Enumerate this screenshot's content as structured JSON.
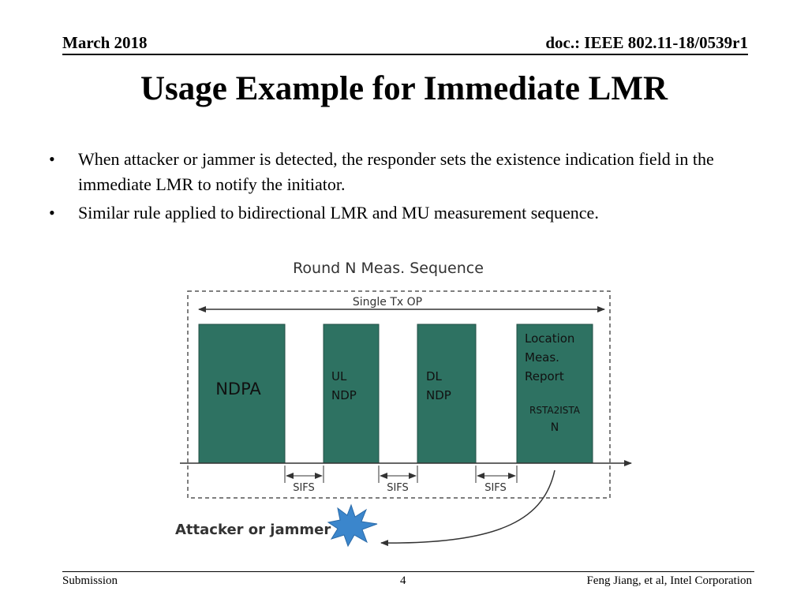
{
  "header": {
    "date": "March 2018",
    "doc_id": "doc.: IEEE 802.11-18/0539r1"
  },
  "slide": {
    "title": "Usage Example for Immediate LMR",
    "bullets": [
      "When attacker or jammer is detected, the responder sets the existence indication field in the immediate LMR to notify the initiator.",
      "Similar rule applied to bidirectional LMR and MU measurement sequence."
    ]
  },
  "diagram": {
    "title": "Round N Meas. Sequence",
    "txop_label": "Single Tx OP",
    "blocks": {
      "ndpa": "NDPA",
      "ul_ndp": [
        "UL",
        "NDP"
      ],
      "dl_ndp": [
        "DL",
        "NDP"
      ],
      "lmr": [
        "Location",
        "Meas.",
        "Report"
      ],
      "lmr_sub": [
        "RSTA2ISTA",
        "N"
      ]
    },
    "sifs_labels": [
      "SIFS",
      "SIFS",
      "SIFS"
    ],
    "attacker_label": "Attacker or jammer",
    "block_color": "#2e7262",
    "burst_color": "#3b86cc"
  },
  "footer": {
    "left": "Submission",
    "page": "4",
    "author": "Feng Jiang, et al, Intel Corporation"
  }
}
